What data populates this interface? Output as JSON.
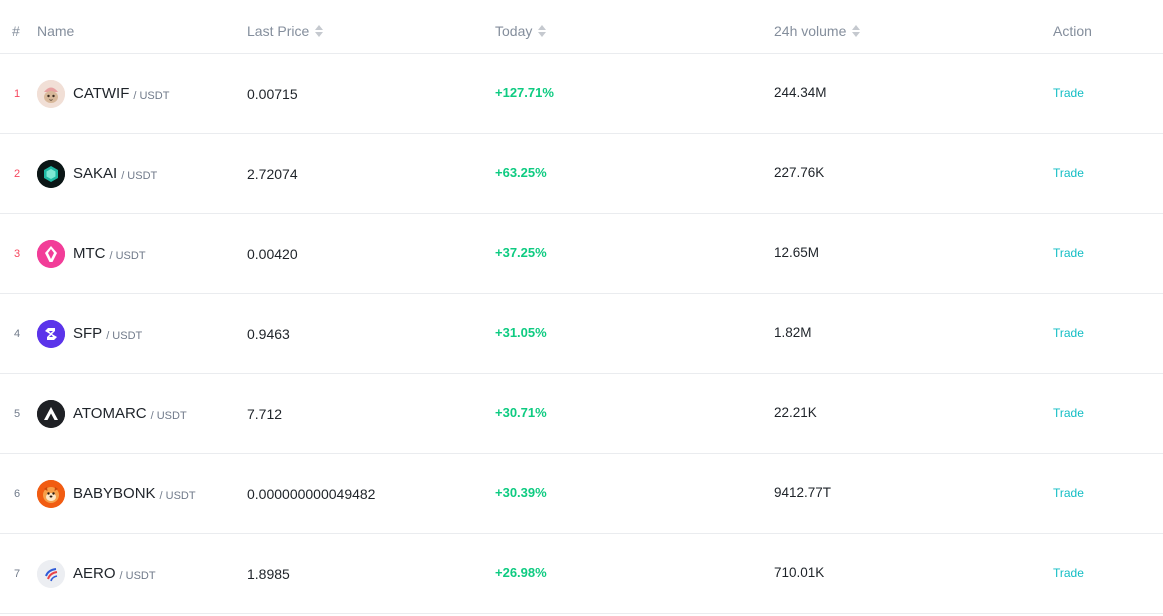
{
  "header": {
    "rank": "#",
    "name": "Name",
    "last_price": "Last Price",
    "today": "Today",
    "volume": "24h volume",
    "action": "Action"
  },
  "rows": [
    {
      "rank": "1",
      "base": "CATWIF",
      "quote": "/ USDT",
      "price": "0.00715",
      "change": "+127.71%",
      "volume": "244.34M",
      "action": "Trade",
      "icon": "catwif-logo-icon"
    },
    {
      "rank": "2",
      "base": "SAKAI",
      "quote": "/ USDT",
      "price": "2.72074",
      "change": "+63.25%",
      "volume": "227.76K",
      "action": "Trade",
      "icon": "sakai-logo-icon"
    },
    {
      "rank": "3",
      "base": "MTC",
      "quote": "/ USDT",
      "price": "0.00420",
      "change": "+37.25%",
      "volume": "12.65M",
      "action": "Trade",
      "icon": "mtc-logo-icon"
    },
    {
      "rank": "4",
      "base": "SFP",
      "quote": "/ USDT",
      "price": "0.9463",
      "change": "+31.05%",
      "volume": "1.82M",
      "action": "Trade",
      "icon": "sfp-logo-icon"
    },
    {
      "rank": "5",
      "base": "ATOMARC",
      "quote": "/ USDT",
      "price": "7.712",
      "change": "+30.71%",
      "volume": "22.21K",
      "action": "Trade",
      "icon": "atomarc-logo-icon"
    },
    {
      "rank": "6",
      "base": "BABYBONK",
      "quote": "/ USDT",
      "price": "0.000000000049482",
      "change": "+30.39%",
      "volume": "9412.77T",
      "action": "Trade",
      "icon": "babybonk-logo-icon"
    },
    {
      "rank": "7",
      "base": "AERO",
      "quote": "/ USDT",
      "price": "1.8985",
      "change": "+26.98%",
      "volume": "710.01K",
      "action": "Trade",
      "icon": "aero-logo-icon"
    }
  ],
  "colors": {
    "positive": "#0ecb81",
    "accent": "#12bdc4",
    "top_rank": "#f6465d",
    "muted": "#848e9c"
  }
}
